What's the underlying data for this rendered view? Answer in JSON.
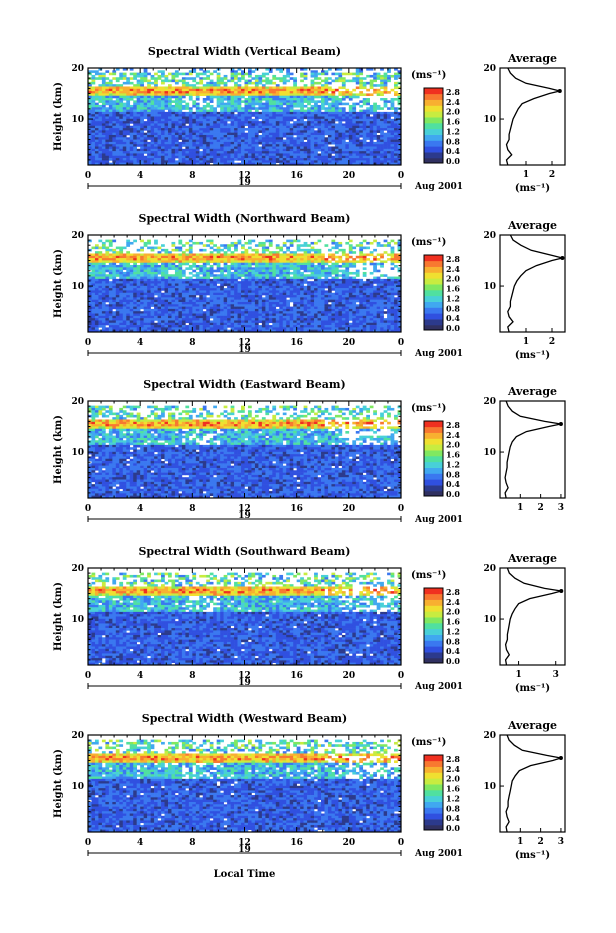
{
  "colors": {
    "scale": [
      "#2c3a8c",
      "#3050e0",
      "#3a78f0",
      "#40a8f0",
      "#48d0d8",
      "#50e0a0",
      "#80e860",
      "#c8ec40",
      "#f0e030",
      "#f8b030",
      "#f87830",
      "#f03020"
    ],
    "bottom_band": "#303060"
  },
  "common": {
    "x_ticks": [
      "0",
      "4",
      "8",
      "12",
      "16",
      "20",
      "0"
    ],
    "day": "19",
    "date": "Aug 2001",
    "y_ticks": [
      "20",
      "10"
    ],
    "unit": "(ms⁻¹)",
    "cb_ticks": [
      "2.8",
      "2.4",
      "2.0",
      "1.6",
      "1.2",
      "0.8",
      "0.4",
      "0.0"
    ],
    "avg_title": "Average",
    "avg_xunit": "(ms⁻¹)",
    "ylabel": "Height (km)",
    "xlabel": "Local Time"
  },
  "chart_data": [
    {
      "type": "heatmap",
      "title": "Spectral Width (Vertical Beam)",
      "xlabel": "",
      "ylabel": "Height (km)",
      "xlim": [
        0,
        24
      ],
      "ylim": [
        1,
        20
      ],
      "colorbar_range": [
        0.0,
        2.8
      ],
      "peak_height_km": 15.5,
      "average_profile": {
        "title": "Average",
        "xlabel": "(ms⁻¹)",
        "x_ticks": [
          "1",
          "2"
        ],
        "xlim": [
          0,
          2.5
        ],
        "heights": [
          1,
          2,
          3,
          4,
          5,
          6,
          7,
          8,
          9,
          10,
          11,
          12,
          13,
          14,
          15,
          15.5,
          16,
          17,
          18,
          19,
          20
        ],
        "values": [
          0.3,
          0.25,
          0.45,
          0.3,
          0.25,
          0.35,
          0.35,
          0.4,
          0.45,
          0.5,
          0.6,
          0.7,
          0.85,
          1.3,
          1.9,
          2.3,
          1.9,
          1.0,
          0.6,
          0.4,
          0.3
        ]
      }
    },
    {
      "type": "heatmap",
      "title": "Spectral Width (Northward Beam)",
      "xlabel": "",
      "ylabel": "Height (km)",
      "xlim": [
        0,
        24
      ],
      "ylim": [
        1,
        20
      ],
      "colorbar_range": [
        0.0,
        2.8
      ],
      "peak_height_km": 15.5,
      "average_profile": {
        "title": "Average",
        "xlabel": "(ms⁻¹)",
        "x_ticks": [
          "1",
          "2"
        ],
        "xlim": [
          0,
          2.5
        ],
        "heights": [
          1,
          2,
          3,
          4,
          5,
          6,
          7,
          8,
          9,
          10,
          11,
          12,
          13,
          14,
          15,
          15.5,
          16,
          17,
          18,
          19,
          20
        ],
        "values": [
          0.35,
          0.3,
          0.5,
          0.35,
          0.3,
          0.4,
          0.4,
          0.45,
          0.5,
          0.55,
          0.65,
          0.8,
          1.0,
          1.4,
          2.0,
          2.4,
          2.0,
          1.2,
          0.8,
          0.5,
          0.4
        ]
      }
    },
    {
      "type": "heatmap",
      "title": "Spectral Width (Eastward Beam)",
      "xlabel": "",
      "ylabel": "Height (km)",
      "xlim": [
        0,
        24
      ],
      "ylim": [
        1,
        20
      ],
      "colorbar_range": [
        0.0,
        2.8
      ],
      "peak_height_km": 15.5,
      "average_profile": {
        "title": "Average",
        "xlabel": "",
        "x_ticks": [
          "1",
          "2",
          "3"
        ],
        "xlim": [
          0,
          3.2
        ],
        "heights": [
          1,
          2,
          3,
          4,
          5,
          6,
          7,
          8,
          9,
          10,
          11,
          12,
          13,
          14,
          15,
          15.5,
          16,
          17,
          18,
          19,
          20
        ],
        "values": [
          0.3,
          0.25,
          0.4,
          0.3,
          0.25,
          0.3,
          0.35,
          0.35,
          0.4,
          0.45,
          0.5,
          0.6,
          0.8,
          1.3,
          2.4,
          3.0,
          2.2,
          1.0,
          0.6,
          0.4,
          0.3
        ]
      }
    },
    {
      "type": "heatmap",
      "title": "Spectral Width (Southward Beam)",
      "xlabel": "",
      "ylabel": "Height (km)",
      "xlim": [
        0,
        24
      ],
      "ylim": [
        1,
        20
      ],
      "colorbar_range": [
        0.0,
        2.8
      ],
      "peak_height_km": 15.5,
      "average_profile": {
        "title": "Average",
        "xlabel": "(ms⁻¹)",
        "x_ticks": [
          "1",
          "3"
        ],
        "xlim": [
          0,
          3.5
        ],
        "heights": [
          1,
          2,
          3,
          4,
          5,
          6,
          7,
          8,
          9,
          10,
          11,
          12,
          13,
          14,
          15,
          15.5,
          16,
          17,
          18,
          19,
          20
        ],
        "values": [
          0.35,
          0.3,
          0.5,
          0.35,
          0.3,
          0.4,
          0.4,
          0.45,
          0.5,
          0.55,
          0.65,
          0.8,
          1.0,
          1.6,
          2.8,
          3.3,
          2.4,
          1.3,
          0.8,
          0.5,
          0.4
        ]
      }
    },
    {
      "type": "heatmap",
      "title": "Spectral Width (Westward Beam)",
      "xlabel": "Local Time",
      "ylabel": "Height (km)",
      "xlim": [
        0,
        24
      ],
      "ylim": [
        1,
        20
      ],
      "colorbar_range": [
        0.0,
        2.8
      ],
      "peak_height_km": 15.5,
      "average_profile": {
        "title": "Average",
        "xlabel": "(ms⁻¹)",
        "x_ticks": [
          "1",
          "2",
          "3"
        ],
        "xlim": [
          0,
          3.2
        ],
        "heights": [
          1,
          2,
          3,
          4,
          5,
          6,
          7,
          8,
          9,
          10,
          11,
          12,
          13,
          14,
          15,
          15.5,
          16,
          17,
          18,
          19,
          20
        ],
        "values": [
          0.35,
          0.3,
          0.45,
          0.35,
          0.3,
          0.4,
          0.4,
          0.45,
          0.5,
          0.55,
          0.6,
          0.75,
          0.95,
          1.5,
          2.6,
          3.0,
          2.3,
          1.1,
          0.7,
          0.45,
          0.35
        ]
      }
    }
  ]
}
